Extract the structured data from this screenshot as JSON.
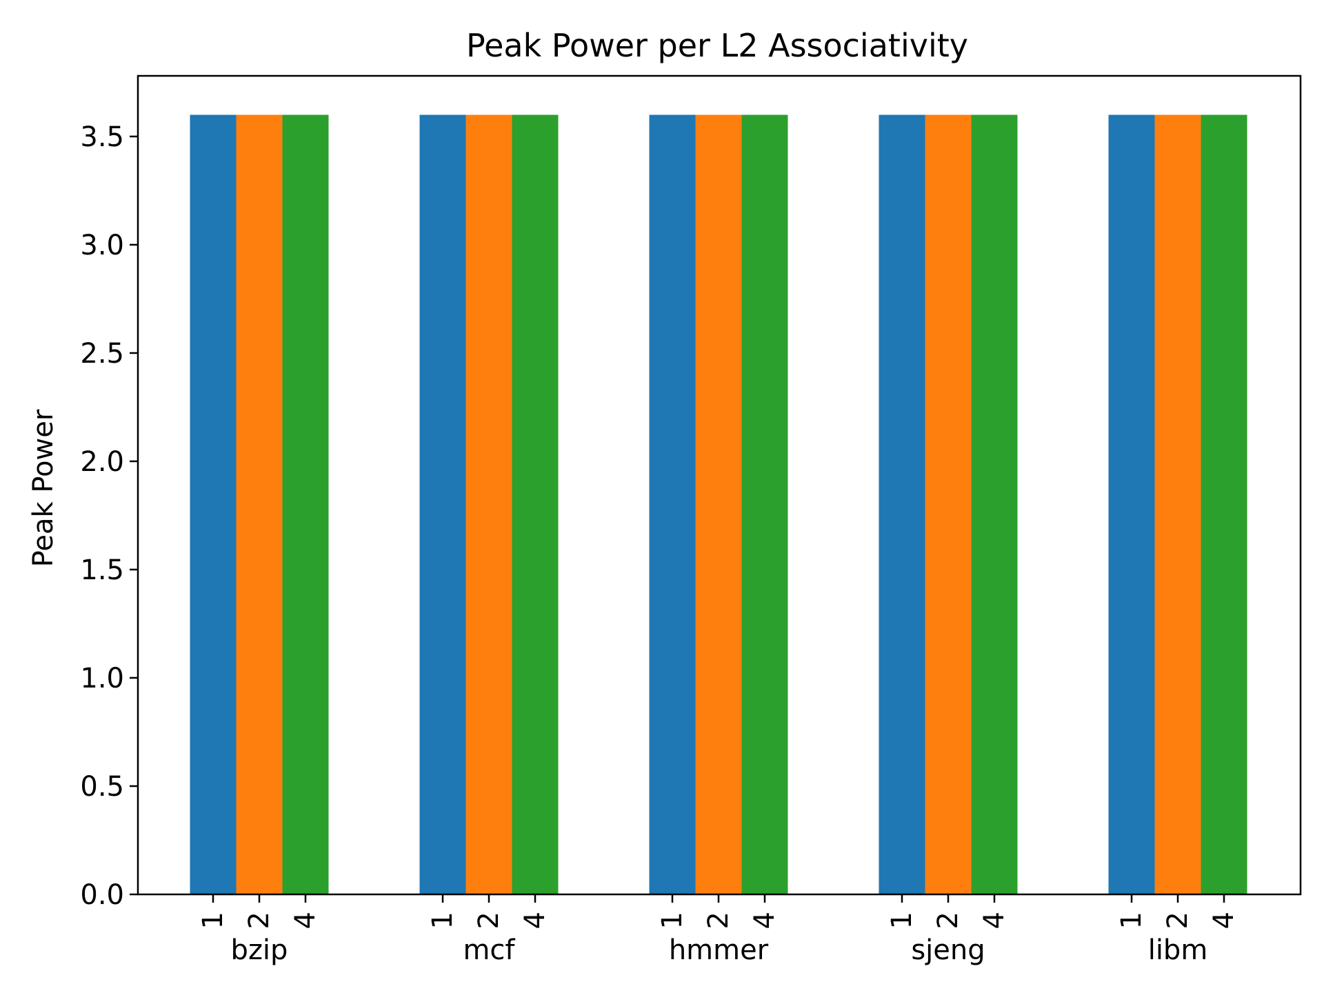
{
  "chart_data": {
    "type": "bar",
    "title": "Peak Power per L2 Associativity",
    "xlabel": "",
    "ylabel": "Peak Power",
    "ylim": [
      0,
      3.78
    ],
    "yticks": [
      "0.0",
      "0.5",
      "1.0",
      "1.5",
      "2.0",
      "2.5",
      "3.0",
      "3.5"
    ],
    "ytick_values": [
      0,
      0.5,
      1.0,
      1.5,
      2.0,
      2.5,
      3.0,
      3.5
    ],
    "categories": [
      "bzip",
      "mcf",
      "hmmer",
      "sjeng",
      "libm"
    ],
    "sub_labels": [
      "1",
      "2",
      "4"
    ],
    "grid": false,
    "legend": "none",
    "series": [
      {
        "color": "#1f77b4",
        "values": [
          3.6,
          3.6,
          3.6,
          3.6,
          3.6
        ]
      },
      {
        "color": "#ff7f0e",
        "values": [
          3.6,
          3.6,
          3.6,
          3.6,
          3.6
        ]
      },
      {
        "color": "#2ca02c",
        "values": [
          3.6,
          3.6,
          3.6,
          3.6,
          3.6
        ]
      }
    ]
  }
}
